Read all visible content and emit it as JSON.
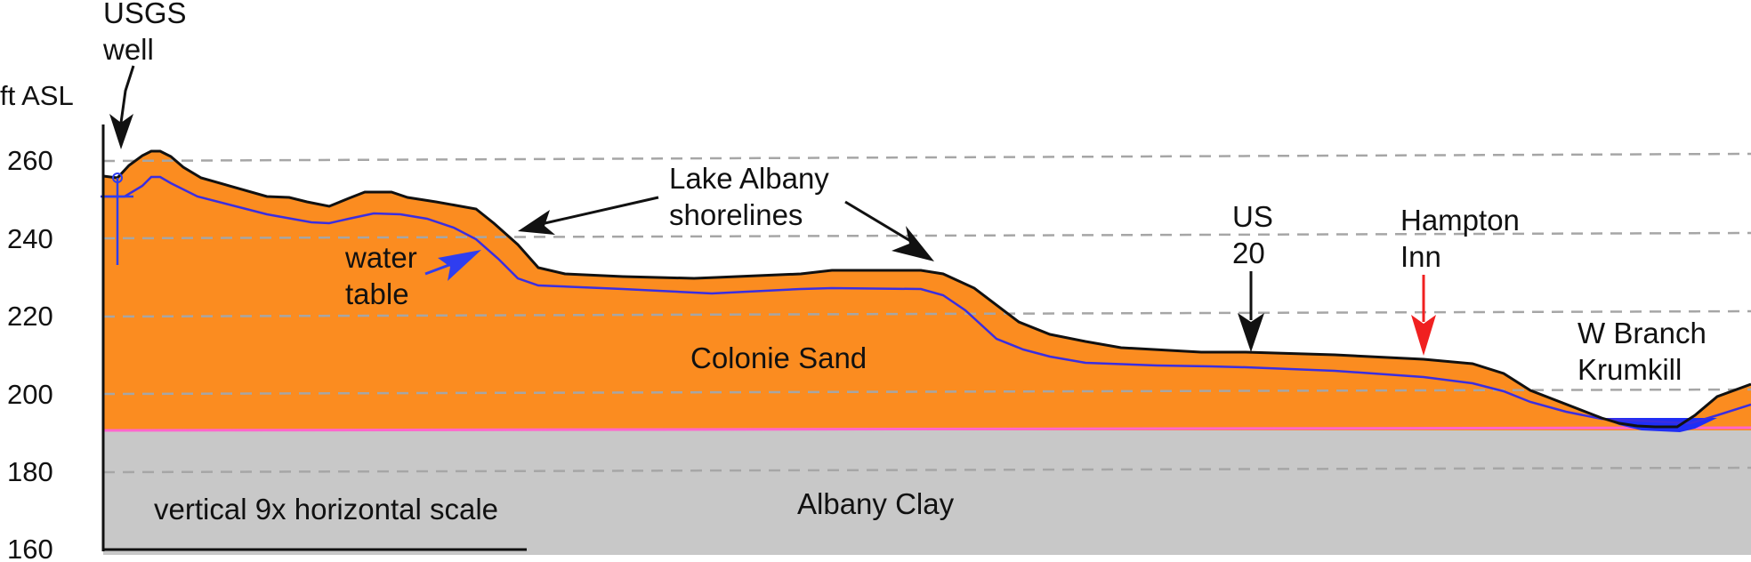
{
  "axis": {
    "unit_label": "ft ASL",
    "ticks": [
      "260",
      "240",
      "220",
      "200",
      "180",
      "160"
    ]
  },
  "labels": {
    "usgs_well": [
      "USGS",
      "well"
    ],
    "shorelines": [
      "Lake Albany",
      "shorelines"
    ],
    "water_table": [
      "water",
      "table"
    ],
    "us20": [
      "US",
      "20"
    ],
    "hampton_inn": [
      "Hampton",
      "Inn"
    ],
    "w_branch": [
      "W Branch",
      "Krumkill"
    ],
    "colonie_sand": "Colonie Sand",
    "albany_clay": "Albany Clay",
    "scale_note": "vertical 9x horizontal scale"
  },
  "colors": {
    "sand": "#fb8c20",
    "clay": "#c8c8c8",
    "water": "#1f2ef5",
    "water_table_line": "#3a2ee0",
    "contact_line": "#ff66cc",
    "arrow_black": "#111111",
    "arrow_blue": "#2f3ef0",
    "arrow_red": "#f02020"
  }
}
